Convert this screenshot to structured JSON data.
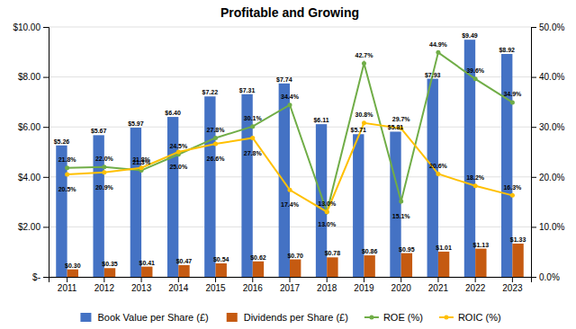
{
  "chart_data": {
    "type": "bar",
    "title": "Profitable and Growing",
    "categories": [
      "2011",
      "2012",
      "2013",
      "2014",
      "2015",
      "2016",
      "2017",
      "2018",
      "2019",
      "2020",
      "2021",
      "2022",
      "2023"
    ],
    "series": [
      {
        "name": "Book Value per Share (£)",
        "type": "bar",
        "color": "#4472C4",
        "values": [
          5.26,
          5.67,
          5.97,
          6.4,
          7.22,
          7.31,
          7.74,
          6.11,
          5.71,
          5.81,
          7.93,
          9.49,
          8.92
        ],
        "value_labels": [
          "$5.26",
          "$5.67",
          "$5.97",
          "$6.40",
          "$7.22",
          "$7.31",
          "$7.74",
          "$6.11",
          "$5.71",
          "$5.81",
          "$7.93",
          "$9.49",
          "$8.92"
        ]
      },
      {
        "name": "Dividends per Share (£)",
        "type": "bar",
        "color": "#C55A11",
        "values": [
          0.3,
          0.35,
          0.41,
          0.47,
          0.54,
          0.62,
          0.7,
          0.78,
          0.86,
          0.95,
          1.01,
          1.13,
          1.33
        ],
        "value_labels": [
          "$0.30",
          "$0.35",
          "$0.41",
          "$0.47",
          "$0.54",
          "$0.62",
          "$0.70",
          "$0.78",
          "$0.86",
          "$0.95",
          "$1.01",
          "$1.13",
          "$1.33"
        ]
      },
      {
        "name": "ROE (%)",
        "type": "line",
        "axis": "y2",
        "color": "#70AD47",
        "marker": "circle",
        "values": [
          21.8,
          22.0,
          21.3,
          24.5,
          27.8,
          30.1,
          34.4,
          13.0,
          42.7,
          15.1,
          44.9,
          39.6,
          34.9
        ],
        "value_labels": [
          "21.8%",
          "22.0%",
          "21.3%",
          "24.5%",
          "27.8%",
          "30.1%",
          "34.4%",
          "13.0%",
          "42.7%",
          "15.1%",
          "44.9%",
          "39.6%",
          "34.9%"
        ]
      },
      {
        "name": "ROIC (%)",
        "type": "line",
        "axis": "y2",
        "color": "#FFC000",
        "marker": "circle",
        "values": [
          20.5,
          20.9,
          21.8,
          25.0,
          26.6,
          27.8,
          17.4,
          13.0,
          30.8,
          29.7,
          20.6,
          18.2,
          16.3
        ],
        "value_labels": [
          "20.5%",
          "20.9%",
          "21.8%",
          "25.0%",
          "26.6%",
          "27.8%",
          "17.4%",
          "13.0%",
          "30.8%",
          "29.7%",
          "20.6%",
          "18.2%",
          "16.3%"
        ]
      }
    ],
    "ylim": [
      0,
      10.0
    ],
    "yticks": [
      {
        "value": 0,
        "label": "$-"
      },
      {
        "value": 2.0,
        "label": "$2.00"
      },
      {
        "value": 4.0,
        "label": "$4.00"
      },
      {
        "value": 6.0,
        "label": "$6.00"
      },
      {
        "value": 8.0,
        "label": "$8.00"
      },
      {
        "value": 10.0,
        "label": "$10.00"
      }
    ],
    "y2lim": [
      0,
      50.0
    ],
    "y2ticks": [
      {
        "value": 0.0,
        "label": "0.0%"
      },
      {
        "value": 10.0,
        "label": "10.0%"
      },
      {
        "value": 20.0,
        "label": "20.0%"
      },
      {
        "value": 30.0,
        "label": "30.0%"
      },
      {
        "value": 40.0,
        "label": "40.0%"
      },
      {
        "value": 50.0,
        "label": "50.0%"
      }
    ],
    "grid": true,
    "legend": "bottom",
    "data_labels": true
  }
}
